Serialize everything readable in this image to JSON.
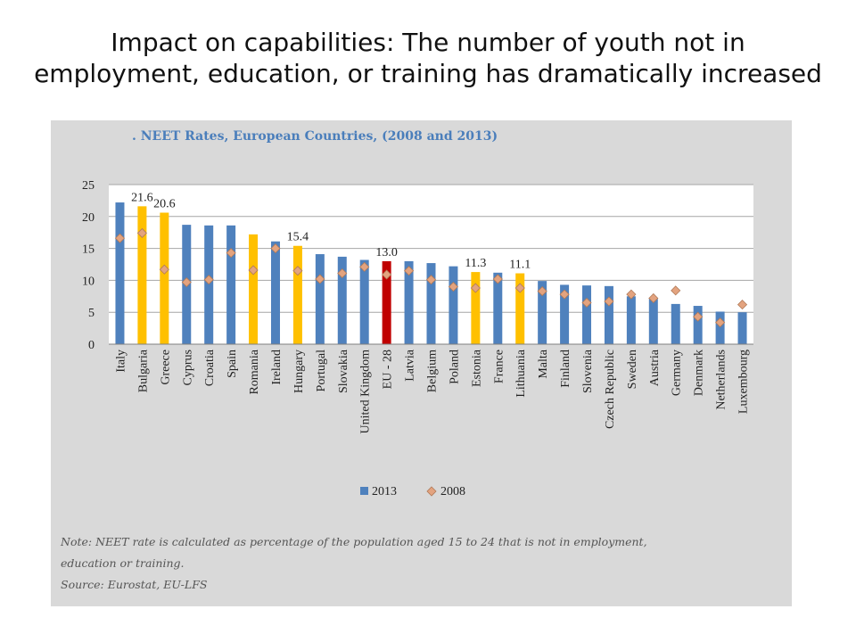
{
  "slide": {
    "title_line1": "Impact on capabilities: The number of youth not in",
    "title_line2": "employment, education, or training has dramatically increased"
  },
  "notes": {
    "note_line1": "Note: NEET rate is calculated as percentage of the population aged 15 to 24 that is not in employment,",
    "note_line2": "education or training.",
    "source": "Source: Eurostat, EU-LFS"
  },
  "colors": {
    "panel_background": "#d9d9d9",
    "plot_background": "#ffffff",
    "bar_default": "#4f81bd",
    "bar_highlight": "#ffc000",
    "bar_eu": "#c00000",
    "marker_2008": "#e3a37f",
    "title": "#4a7ebb"
  },
  "chart_data": {
    "type": "bar",
    "title": ". NEET Rates, European Countries, (2008 and 2013)",
    "xlabel": "",
    "ylabel": "",
    "ylim": [
      0,
      25
    ],
    "yticks": [
      0,
      5,
      10,
      15,
      20,
      25
    ],
    "grid": true,
    "legend_position": "bottom",
    "categories": [
      "Italy",
      "Bulgaria",
      "Greece",
      "Cyprus",
      "Croatia",
      "Spain",
      "Romania",
      "Ireland",
      "Hungary",
      "Portugal",
      "Slovakia",
      "United Kingdom",
      "EU - 28",
      "Latvia",
      "Belgium",
      "Poland",
      "Estonia",
      "France",
      "Lithuania",
      "Malta",
      "Finland",
      "Slovenia",
      "Czech Republic",
      "Sweden",
      "Austria",
      "Germany",
      "Denmark",
      "Netherlands",
      "Luxembourg"
    ],
    "series": [
      {
        "name": "2013",
        "kind": "bar",
        "values": [
          22.2,
          21.6,
          20.6,
          18.7,
          18.6,
          18.6,
          17.2,
          16.1,
          15.4,
          14.1,
          13.7,
          13.2,
          13.0,
          13.0,
          12.7,
          12.2,
          11.3,
          11.2,
          11.1,
          9.9,
          9.3,
          9.2,
          9.1,
          7.5,
          7.1,
          6.3,
          6.0,
          5.1,
          5.0
        ]
      },
      {
        "name": "2008",
        "kind": "marker",
        "values": [
          16.6,
          17.4,
          11.7,
          9.7,
          10.1,
          14.3,
          11.6,
          15.0,
          11.5,
          10.2,
          11.1,
          12.1,
          10.9,
          11.5,
          10.1,
          9.0,
          8.8,
          10.2,
          8.8,
          8.3,
          7.8,
          6.5,
          6.7,
          7.8,
          7.2,
          8.4,
          4.3,
          3.4,
          6.2
        ]
      }
    ],
    "highlighted_categories": [
      "Bulgaria",
      "Greece",
      "Romania",
      "Hungary",
      "Estonia",
      "Lithuania"
    ],
    "eu_category": "EU - 28",
    "data_labels": [
      {
        "category": "Bulgaria",
        "text": "21.6"
      },
      {
        "category": "Greece",
        "text": "20.6"
      },
      {
        "category": "Hungary",
        "text": "15.4"
      },
      {
        "category": "EU - 28",
        "text": "13.0"
      },
      {
        "category": "Estonia",
        "text": "11.3"
      },
      {
        "category": "Lithuania",
        "text": "11.1"
      }
    ]
  }
}
